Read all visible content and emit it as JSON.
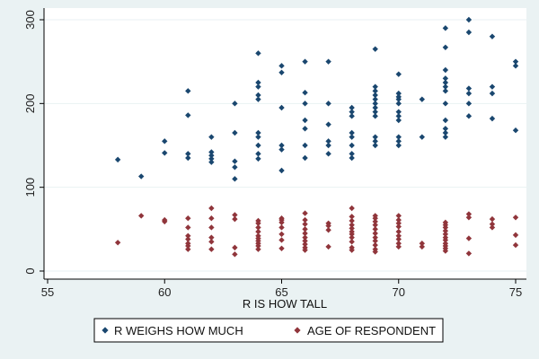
{
  "chart_data": {
    "type": "scatter",
    "title": "",
    "xlabel": "R IS HOW TALL",
    "ylabel": "",
    "xlim": [
      55,
      75
    ],
    "ylim": [
      0,
      300
    ],
    "xticks": [
      "55",
      "60",
      "65",
      "70",
      "75"
    ],
    "yticks": [
      "0",
      "100",
      "200",
      "300"
    ],
    "grid": true,
    "legend_position": "bottom",
    "series": [
      {
        "name": "R WEIGHS HOW MUCH",
        "color": "#1a476f",
        "marker": "diamond",
        "points": [
          [
            58,
            133
          ],
          [
            59,
            113
          ],
          [
            60,
            155
          ],
          [
            60,
            141
          ],
          [
            61,
            215
          ],
          [
            61,
            186
          ],
          [
            61,
            140
          ],
          [
            61,
            135
          ],
          [
            62,
            160
          ],
          [
            62,
            142
          ],
          [
            62,
            138
          ],
          [
            62,
            134
          ],
          [
            62,
            130
          ],
          [
            63,
            200
          ],
          [
            63,
            165
          ],
          [
            63,
            131
          ],
          [
            63,
            124
          ],
          [
            63,
            110
          ],
          [
            64,
            260
          ],
          [
            64,
            225
          ],
          [
            64,
            220
          ],
          [
            64,
            210
          ],
          [
            64,
            205
          ],
          [
            64,
            165
          ],
          [
            64,
            160
          ],
          [
            64,
            150
          ],
          [
            64,
            140
          ],
          [
            64,
            134
          ],
          [
            65,
            245
          ],
          [
            65,
            237
          ],
          [
            65,
            195
          ],
          [
            65,
            150
          ],
          [
            65,
            145
          ],
          [
            65,
            120
          ],
          [
            66,
            250
          ],
          [
            66,
            213
          ],
          [
            66,
            200
          ],
          [
            66,
            180
          ],
          [
            66,
            170
          ],
          [
            66,
            150
          ],
          [
            66,
            135
          ],
          [
            67,
            250
          ],
          [
            67,
            200
          ],
          [
            67,
            175
          ],
          [
            67,
            155
          ],
          [
            67,
            150
          ],
          [
            67,
            140
          ],
          [
            68,
            195
          ],
          [
            68,
            190
          ],
          [
            68,
            185
          ],
          [
            68,
            165
          ],
          [
            68,
            160
          ],
          [
            68,
            150
          ],
          [
            68,
            140
          ],
          [
            68,
            135
          ],
          [
            69,
            265
          ],
          [
            69,
            220
          ],
          [
            69,
            215
          ],
          [
            69,
            210
          ],
          [
            69,
            205
          ],
          [
            69,
            200
          ],
          [
            69,
            195
          ],
          [
            69,
            190
          ],
          [
            69,
            185
          ],
          [
            69,
            160
          ],
          [
            69,
            155
          ],
          [
            69,
            150
          ],
          [
            70,
            235
          ],
          [
            70,
            212
          ],
          [
            70,
            208
          ],
          [
            70,
            205
          ],
          [
            70,
            200
          ],
          [
            70,
            190
          ],
          [
            70,
            185
          ],
          [
            70,
            180
          ],
          [
            70,
            160
          ],
          [
            70,
            155
          ],
          [
            70,
            150
          ],
          [
            71,
            205
          ],
          [
            71,
            160
          ],
          [
            72,
            290
          ],
          [
            72,
            267
          ],
          [
            72,
            240
          ],
          [
            72,
            230
          ],
          [
            72,
            225
          ],
          [
            72,
            220
          ],
          [
            72,
            215
          ],
          [
            72,
            200
          ],
          [
            72,
            180
          ],
          [
            72,
            170
          ],
          [
            72,
            165
          ],
          [
            72,
            160
          ],
          [
            73,
            300
          ],
          [
            73,
            285
          ],
          [
            73,
            218
          ],
          [
            73,
            212
          ],
          [
            73,
            200
          ],
          [
            73,
            185
          ],
          [
            74,
            280
          ],
          [
            74,
            220
          ],
          [
            74,
            212
          ],
          [
            74,
            182
          ],
          [
            75,
            250
          ],
          [
            75,
            245
          ],
          [
            75,
            168
          ]
        ]
      },
      {
        "name": "AGE OF RESPONDENT",
        "color": "#90353b",
        "marker": "diamond",
        "points": [
          [
            58,
            34
          ],
          [
            59,
            66
          ],
          [
            60,
            61
          ],
          [
            60,
            59
          ],
          [
            61,
            63
          ],
          [
            61,
            52
          ],
          [
            61,
            42
          ],
          [
            61,
            38
          ],
          [
            61,
            33
          ],
          [
            61,
            30
          ],
          [
            61,
            26
          ],
          [
            62,
            75
          ],
          [
            62,
            63
          ],
          [
            62,
            52
          ],
          [
            62,
            40
          ],
          [
            62,
            35
          ],
          [
            62,
            26
          ],
          [
            63,
            67
          ],
          [
            63,
            62
          ],
          [
            63,
            28
          ],
          [
            63,
            20
          ],
          [
            64,
            60
          ],
          [
            64,
            57
          ],
          [
            64,
            52
          ],
          [
            64,
            47
          ],
          [
            64,
            42
          ],
          [
            64,
            39
          ],
          [
            64,
            36
          ],
          [
            64,
            33
          ],
          [
            64,
            30
          ],
          [
            64,
            26
          ],
          [
            65,
            63
          ],
          [
            65,
            61
          ],
          [
            65,
            58
          ],
          [
            65,
            52
          ],
          [
            65,
            44
          ],
          [
            65,
            37
          ],
          [
            65,
            27
          ],
          [
            66,
            69
          ],
          [
            66,
            61
          ],
          [
            66,
            56
          ],
          [
            66,
            50
          ],
          [
            66,
            45
          ],
          [
            66,
            40
          ],
          [
            66,
            36
          ],
          [
            66,
            32
          ],
          [
            66,
            28
          ],
          [
            66,
            25
          ],
          [
            67,
            57
          ],
          [
            67,
            54
          ],
          [
            67,
            49
          ],
          [
            67,
            29
          ],
          [
            68,
            75
          ],
          [
            68,
            65
          ],
          [
            68,
            60
          ],
          [
            68,
            55
          ],
          [
            68,
            51
          ],
          [
            68,
            47
          ],
          [
            68,
            44
          ],
          [
            68,
            40
          ],
          [
            68,
            35
          ],
          [
            68,
            28
          ],
          [
            68,
            25
          ],
          [
            69,
            66
          ],
          [
            69,
            63
          ],
          [
            69,
            59
          ],
          [
            69,
            55
          ],
          [
            69,
            50
          ],
          [
            69,
            45
          ],
          [
            69,
            40
          ],
          [
            69,
            36
          ],
          [
            69,
            31
          ],
          [
            69,
            26
          ],
          [
            69,
            23
          ],
          [
            70,
            66
          ],
          [
            70,
            61
          ],
          [
            70,
            57
          ],
          [
            70,
            53
          ],
          [
            70,
            47
          ],
          [
            70,
            42
          ],
          [
            70,
            38
          ],
          [
            70,
            33
          ],
          [
            70,
            29
          ],
          [
            71,
            33
          ],
          [
            71,
            29
          ],
          [
            72,
            58
          ],
          [
            72,
            55
          ],
          [
            72,
            52
          ],
          [
            72,
            48
          ],
          [
            72,
            44
          ],
          [
            72,
            40
          ],
          [
            72,
            37
          ],
          [
            72,
            33
          ],
          [
            72,
            30
          ],
          [
            72,
            27
          ],
          [
            72,
            24
          ],
          [
            73,
            68
          ],
          [
            73,
            64
          ],
          [
            73,
            39
          ],
          [
            73,
            21
          ],
          [
            74,
            62
          ],
          [
            74,
            56
          ],
          [
            74,
            52
          ],
          [
            75,
            64
          ],
          [
            75,
            43
          ],
          [
            75,
            31
          ]
        ]
      }
    ]
  }
}
